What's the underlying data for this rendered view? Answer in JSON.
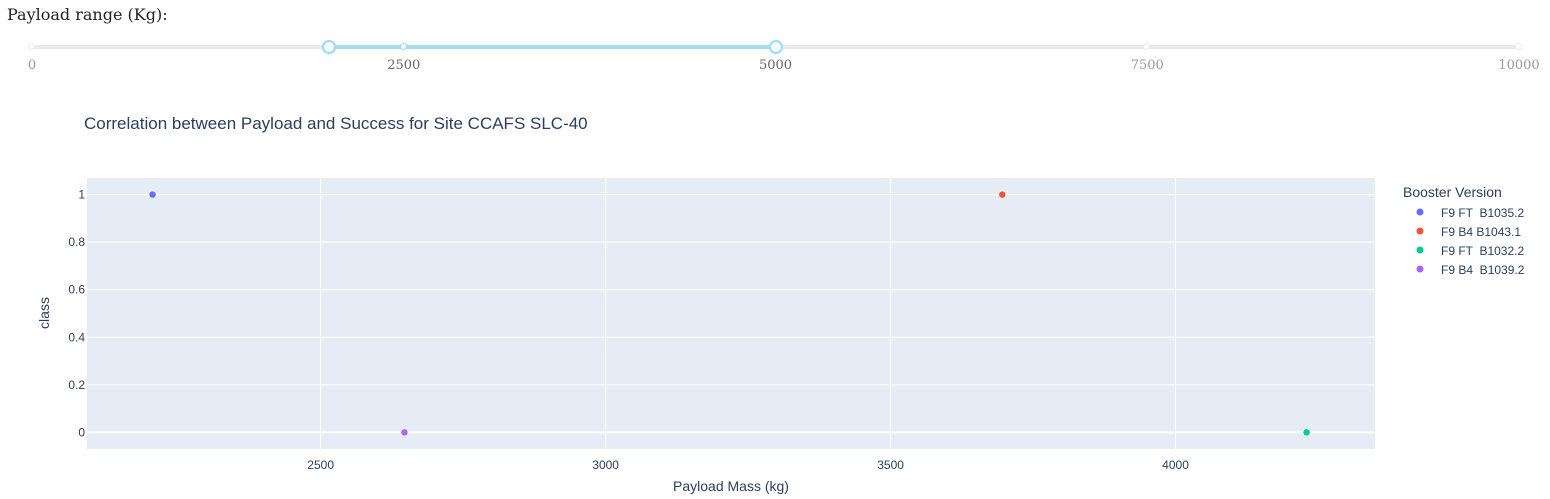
{
  "range_slider": {
    "label": "Payload range (Kg):",
    "min": 0,
    "max": 10000,
    "selected": [
      2000,
      5000
    ],
    "marks": [
      "0",
      "2500",
      "5000",
      "7500",
      "10000"
    ]
  },
  "chart_data": {
    "type": "scatter",
    "title": "Correlation between Payload and Success for Site CCAFS SLC-40",
    "xlabel": "Payload Mass (kg)",
    "ylabel": "class",
    "xlim": [
      2090,
      4350
    ],
    "ylim": [
      -0.07,
      1.07
    ],
    "x_ticks": [
      "2500",
      "3000",
      "3500",
      "4000"
    ],
    "y_ticks": [
      "0",
      "0.2",
      "0.4",
      "0.6",
      "0.8",
      "1"
    ],
    "grid": true,
    "legend_title": "Booster Version",
    "legend_position": "right",
    "series": [
      {
        "name": "F9 FT  B1035.2",
        "color": "#636efa",
        "points": [
          {
            "x": 2205,
            "y": 1
          }
        ]
      },
      {
        "name": "F9 B4 B1043.1",
        "color": "#ef553b",
        "points": [
          {
            "x": 3696,
            "y": 1
          }
        ]
      },
      {
        "name": "F9 FT  B1032.2",
        "color": "#00cc96",
        "points": [
          {
            "x": 4230,
            "y": 0
          }
        ]
      },
      {
        "name": "F9 B4  B1039.2",
        "color": "#ab63fa",
        "points": [
          {
            "x": 2647,
            "y": 0
          }
        ]
      }
    ]
  }
}
